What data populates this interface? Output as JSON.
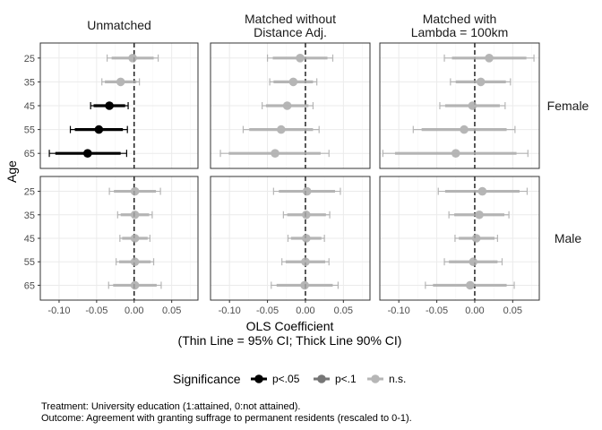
{
  "chart_data": {
    "type": "scatter",
    "subtype": "coefficient-plot",
    "columns": [
      "Unmatched",
      "Matched without\nDistance Adj.",
      "Matched with\nLambda = 100km"
    ],
    "rows": [
      "Female",
      "Male"
    ],
    "age_groups": [
      "25",
      "35",
      "45",
      "55",
      "65"
    ],
    "xlabel": "OLS Coefficient\n(Thin Line = 95% CI; Thick Line 90% CI)",
    "ylabel": "Age",
    "xlim": [
      -0.125,
      0.085
    ],
    "x_ticks": [
      -0.1,
      -0.05,
      0.0,
      0.05
    ],
    "x_tick_labels": [
      "-0.10",
      "-0.05",
      "0.00",
      "0.05"
    ],
    "reference_line": 0,
    "grid": true,
    "legend": {
      "title": "Significance",
      "position": "bottom",
      "items": [
        {
          "key": "p05",
          "label": "p<.05"
        },
        {
          "key": "p10",
          "label": "p<.1"
        },
        {
          "key": "ns",
          "label": "n.s."
        }
      ]
    },
    "colors": {
      "p05": "#000000",
      "p10": "#555555",
      "ns": "#aaaaaa"
    },
    "caption": [
      "Treatment: University education (1:attained, 0:not attained).",
      "Outcome: Agreement with granting suffrage to permanent residents (rescaled to 0-1)."
    ],
    "points": [
      {
        "col": 0,
        "row": 0,
        "age": "25",
        "est": -0.002,
        "lo95": -0.036,
        "hi95": 0.032,
        "lo90": -0.03,
        "hi90": 0.026,
        "sig": "ns"
      },
      {
        "col": 0,
        "row": 0,
        "age": "35",
        "est": -0.018,
        "lo95": -0.043,
        "hi95": 0.007,
        "lo90": -0.039,
        "hi90": 0.003,
        "sig": "ns"
      },
      {
        "col": 0,
        "row": 0,
        "age": "45",
        "est": -0.033,
        "lo95": -0.058,
        "hi95": -0.008,
        "lo90": -0.054,
        "hi90": -0.012,
        "sig": "p05"
      },
      {
        "col": 0,
        "row": 0,
        "age": "55",
        "est": -0.047,
        "lo95": -0.085,
        "hi95": -0.009,
        "lo90": -0.079,
        "hi90": -0.015,
        "sig": "p05"
      },
      {
        "col": 0,
        "row": 0,
        "age": "65",
        "est": -0.062,
        "lo95": -0.113,
        "hi95": -0.01,
        "lo90": -0.105,
        "hi90": -0.018,
        "sig": "p05"
      },
      {
        "col": 1,
        "row": 0,
        "age": "25",
        "est": -0.007,
        "lo95": -0.05,
        "hi95": 0.036,
        "lo90": -0.043,
        "hi90": 0.029,
        "sig": "ns"
      },
      {
        "col": 1,
        "row": 0,
        "age": "35",
        "est": -0.016,
        "lo95": -0.047,
        "hi95": 0.015,
        "lo90": -0.042,
        "hi90": 0.01,
        "sig": "ns"
      },
      {
        "col": 1,
        "row": 0,
        "age": "45",
        "est": -0.024,
        "lo95": -0.057,
        "hi95": 0.01,
        "lo90": -0.052,
        "hi90": 0.004,
        "sig": "ns"
      },
      {
        "col": 1,
        "row": 0,
        "age": "55",
        "est": -0.032,
        "lo95": -0.082,
        "hi95": 0.018,
        "lo90": -0.074,
        "hi90": 0.01,
        "sig": "ns"
      },
      {
        "col": 1,
        "row": 0,
        "age": "65",
        "est": -0.04,
        "lo95": -0.112,
        "hi95": 0.031,
        "lo90": -0.101,
        "hi90": 0.02,
        "sig": "ns"
      },
      {
        "col": 2,
        "row": 0,
        "age": "25",
        "est": 0.019,
        "lo95": -0.04,
        "hi95": 0.078,
        "lo90": -0.03,
        "hi90": 0.068,
        "sig": "ns"
      },
      {
        "col": 2,
        "row": 0,
        "age": "35",
        "est": 0.008,
        "lo95": -0.032,
        "hi95": 0.047,
        "lo90": -0.025,
        "hi90": 0.041,
        "sig": "ns"
      },
      {
        "col": 2,
        "row": 0,
        "age": "45",
        "est": -0.003,
        "lo95": -0.046,
        "hi95": 0.04,
        "lo90": -0.039,
        "hi90": 0.033,
        "sig": "ns"
      },
      {
        "col": 2,
        "row": 0,
        "age": "55",
        "est": -0.014,
        "lo95": -0.081,
        "hi95": 0.053,
        "lo90": -0.07,
        "hi90": 0.042,
        "sig": "ns"
      },
      {
        "col": 2,
        "row": 0,
        "age": "65",
        "est": -0.025,
        "lo95": -0.121,
        "hi95": 0.07,
        "lo90": -0.105,
        "hi90": 0.055,
        "sig": "ns"
      },
      {
        "col": 0,
        "row": 1,
        "age": "25",
        "est": 0.001,
        "lo95": -0.033,
        "hi95": 0.035,
        "lo90": -0.027,
        "hi90": 0.029,
        "sig": "ns"
      },
      {
        "col": 0,
        "row": 1,
        "age": "35",
        "est": 0.001,
        "lo95": -0.022,
        "hi95": 0.024,
        "lo90": -0.018,
        "hi90": 0.02,
        "sig": "ns"
      },
      {
        "col": 0,
        "row": 1,
        "age": "45",
        "est": 0.001,
        "lo95": -0.019,
        "hi95": 0.021,
        "lo90": -0.016,
        "hi90": 0.018,
        "sig": "ns"
      },
      {
        "col": 0,
        "row": 1,
        "age": "55",
        "est": 0.001,
        "lo95": -0.024,
        "hi95": 0.026,
        "lo90": -0.02,
        "hi90": 0.022,
        "sig": "ns"
      },
      {
        "col": 0,
        "row": 1,
        "age": "65",
        "est": 0.001,
        "lo95": -0.034,
        "hi95": 0.036,
        "lo90": -0.028,
        "hi90": 0.03,
        "sig": "ns"
      },
      {
        "col": 1,
        "row": 1,
        "age": "25",
        "est": 0.002,
        "lo95": -0.042,
        "hi95": 0.046,
        "lo90": -0.035,
        "hi90": 0.039,
        "sig": "ns"
      },
      {
        "col": 1,
        "row": 1,
        "age": "35",
        "est": 0.001,
        "lo95": -0.029,
        "hi95": 0.032,
        "lo90": -0.024,
        "hi90": 0.027,
        "sig": "ns"
      },
      {
        "col": 1,
        "row": 1,
        "age": "45",
        "est": 0.001,
        "lo95": -0.023,
        "hi95": 0.025,
        "lo90": -0.019,
        "hi90": 0.021,
        "sig": "ns"
      },
      {
        "col": 1,
        "row": 1,
        "age": "55",
        "est": 0.0,
        "lo95": -0.031,
        "hi95": 0.031,
        "lo90": -0.026,
        "hi90": 0.026,
        "sig": "ns"
      },
      {
        "col": 1,
        "row": 1,
        "age": "65",
        "est": -0.001,
        "lo95": -0.045,
        "hi95": 0.043,
        "lo90": -0.038,
        "hi90": 0.036,
        "sig": "ns"
      },
      {
        "col": 2,
        "row": 1,
        "age": "25",
        "est": 0.01,
        "lo95": -0.048,
        "hi95": 0.069,
        "lo90": -0.039,
        "hi90": 0.059,
        "sig": "ns"
      },
      {
        "col": 2,
        "row": 1,
        "age": "35",
        "est": 0.006,
        "lo95": -0.034,
        "hi95": 0.045,
        "lo90": -0.027,
        "hi90": 0.039,
        "sig": "ns"
      },
      {
        "col": 2,
        "row": 1,
        "age": "45",
        "est": 0.002,
        "lo95": -0.026,
        "hi95": 0.03,
        "lo90": -0.021,
        "hi90": 0.026,
        "sig": "ns"
      },
      {
        "col": 2,
        "row": 1,
        "age": "55",
        "est": -0.002,
        "lo95": -0.04,
        "hi95": 0.036,
        "lo90": -0.034,
        "hi90": 0.03,
        "sig": "ns"
      },
      {
        "col": 2,
        "row": 1,
        "age": "65",
        "est": -0.006,
        "lo95": -0.065,
        "hi95": 0.052,
        "lo90": -0.055,
        "hi90": 0.042,
        "sig": "ns"
      }
    ]
  }
}
